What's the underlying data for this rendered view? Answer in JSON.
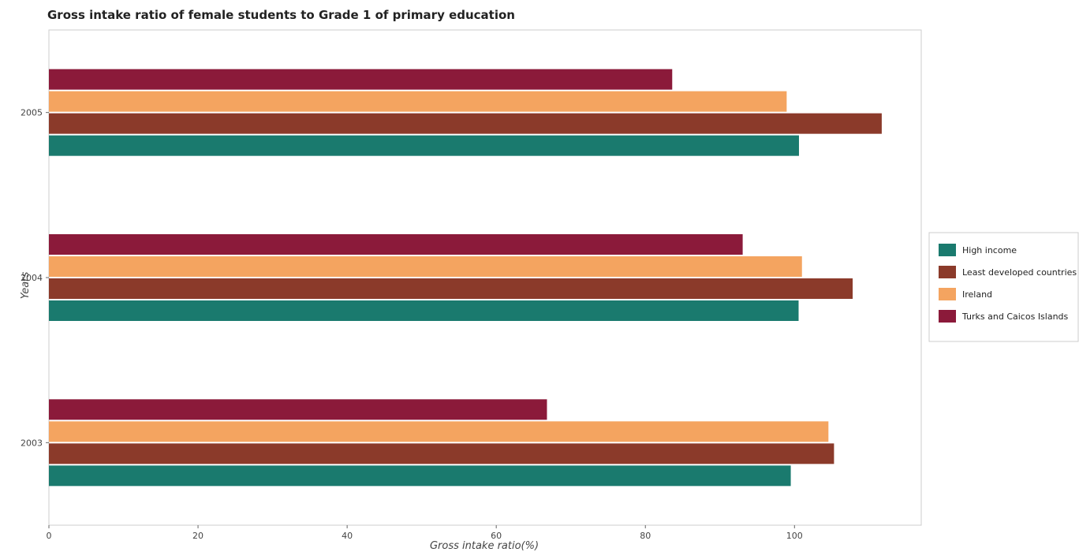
{
  "chart_data": {
    "type": "bar",
    "orientation": "horizontal",
    "title": "Gross intake ratio of female students to Grade 1 of primary education",
    "xlabel": "Gross intake ratio(%)",
    "ylabel": "Years",
    "categories": [
      "2003",
      "2004",
      "2005"
    ],
    "xlim": [
      0,
      117
    ],
    "xticks": [
      "0",
      "20",
      "40",
      "60",
      "80",
      "100"
    ],
    "grid": false,
    "legend_position": "right",
    "series": [
      {
        "name": "High income",
        "color": "#1a7a6e",
        "values": [
          99.5,
          100.55,
          100.6
        ]
      },
      {
        "name": "Least developed countries",
        "color": "#8b3a2a",
        "values": [
          105.3,
          107.8,
          111.7
        ]
      },
      {
        "name": "Ireland",
        "color": "#f4a460",
        "values": [
          104.55,
          101.0,
          98.95
        ]
      },
      {
        "name": "Turks and Caicos Islands",
        "color": "#8b1a3a",
        "values": [
          66.8,
          93.05,
          83.6
        ]
      }
    ]
  }
}
